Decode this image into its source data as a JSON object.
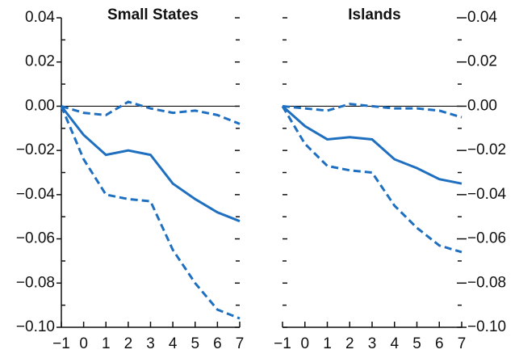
{
  "chart_data": [
    {
      "type": "line",
      "title": "Small States",
      "x": [
        -1,
        0,
        1,
        2,
        3,
        4,
        5,
        6,
        7
      ],
      "xlim": [
        -1,
        7
      ],
      "xticks": [
        {
          "value": -1,
          "label": "−1"
        },
        0,
        1,
        2,
        3,
        4,
        5,
        6,
        7
      ],
      "ylim": [
        -0.1,
        0.04
      ],
      "yticks": [
        0.04,
        0.02,
        {
          "value": 0,
          "label": "0.00"
        },
        {
          "value": -0.02,
          "label": "−0.02"
        },
        {
          "value": -0.04,
          "label": "−0.04"
        },
        {
          "value": -0.06,
          "label": "−0.06"
        },
        {
          "value": -0.08,
          "label": "−0.08"
        },
        {
          "value": -0.1,
          "label": "−0.10"
        }
      ],
      "minor_yticks": [
        0.03,
        0.01,
        -0.01,
        -0.03,
        -0.05,
        -0.07,
        -0.09
      ],
      "tick_labels_side": "left",
      "series": [
        {
          "color": "#1f6fc0",
          "dash": false,
          "values": [
            0,
            -0.013,
            -0.022,
            -0.02,
            -0.022,
            -0.035,
            -0.042,
            -0.048,
            -0.052
          ]
        },
        {
          "color": "#1f6fc0",
          "dash": true,
          "values": [
            0,
            -0.003,
            -0.004,
            0.002,
            -0.001,
            -0.003,
            -0.002,
            -0.004,
            -0.008
          ]
        },
        {
          "color": "#1f6fc0",
          "dash": true,
          "values": [
            0,
            -0.024,
            -0.04,
            -0.042,
            -0.043,
            -0.065,
            -0.08,
            -0.092,
            -0.096
          ]
        }
      ]
    },
    {
      "type": "line",
      "title": "Islands",
      "x": [
        -1,
        0,
        1,
        2,
        3,
        4,
        5,
        6,
        7
      ],
      "xlim": [
        -1,
        7
      ],
      "xticks": [
        {
          "value": -1,
          "label": "−1"
        },
        0,
        1,
        2,
        3,
        4,
        5,
        6,
        7
      ],
      "ylim": [
        -0.1,
        0.04
      ],
      "yticks": [
        0.04,
        0.02,
        {
          "value": 0,
          "label": "0.00"
        },
        {
          "value": -0.02,
          "label": "−0.02"
        },
        {
          "value": -0.04,
          "label": "−0.04"
        },
        {
          "value": -0.06,
          "label": "−0.06"
        },
        {
          "value": -0.08,
          "label": "−0.08"
        },
        {
          "value": -0.1,
          "label": "−0.10"
        }
      ],
      "minor_yticks": [
        0.03,
        0.01,
        -0.01,
        -0.03,
        -0.05,
        -0.07,
        -0.09
      ],
      "tick_labels_side": "right",
      "series": [
        {
          "color": "#1f6fc0",
          "dash": false,
          "values": [
            0,
            -0.009,
            -0.015,
            -0.014,
            -0.015,
            -0.024,
            -0.028,
            -0.033,
            -0.035
          ]
        },
        {
          "color": "#1f6fc0",
          "dash": true,
          "values": [
            0,
            -0.001,
            -0.002,
            0.001,
            0,
            -0.001,
            -0.001,
            -0.002,
            -0.005
          ]
        },
        {
          "color": "#1f6fc0",
          "dash": true,
          "values": [
            0,
            -0.017,
            -0.027,
            -0.029,
            -0.03,
            -0.045,
            -0.055,
            -0.063,
            -0.066
          ]
        }
      ]
    }
  ]
}
